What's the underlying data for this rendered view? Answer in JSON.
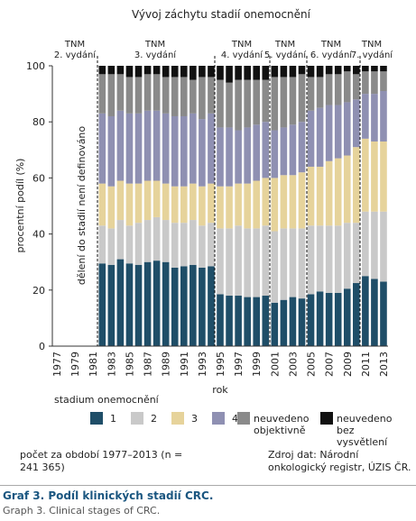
{
  "chart_data": {
    "type": "stacked-bar",
    "title": "Vývoj záchytu stadií onemocnění",
    "y_label": "procentní podíl (%)",
    "x_label": "rok",
    "annotation": "dělení do stadií není definováno",
    "editions": [
      {
        "title": "TNM",
        "edition": "2. vydání"
      },
      {
        "title": "TNM",
        "edition": "3. vydání"
      },
      {
        "title": "TNM",
        "edition": "4. vydání"
      },
      {
        "title": "TNM",
        "edition": "5. vydání"
      },
      {
        "title": "TNM",
        "edition": "6. vydání"
      },
      {
        "title": "TNM",
        "edition": "7. vydání"
      }
    ],
    "categories": [
      "1977",
      null,
      "1979",
      null,
      "1981",
      null,
      "1983",
      null,
      "1985",
      null,
      "1987",
      null,
      "1989",
      null,
      "1991",
      null,
      "1993",
      null,
      "1995",
      null,
      "1997",
      null,
      "1999",
      null,
      "2001",
      null,
      "2003",
      null,
      "2005",
      null,
      "2007",
      null,
      "2009",
      null,
      "2011",
      null,
      "2013"
    ],
    "legend_title": "stadium onemocnění",
    "series": [
      {
        "name": "1",
        "color": "#1f4e68",
        "values": [
          null,
          null,
          null,
          null,
          null,
          29.5,
          29,
          31,
          29.5,
          29,
          30,
          30.5,
          30,
          28,
          28.5,
          29,
          28,
          28.5,
          18.5,
          18,
          18,
          17.5,
          17.5,
          18,
          15.5,
          16.5,
          17.5,
          17,
          18.5,
          19.5,
          19,
          19,
          20.5,
          22.5,
          25,
          24,
          23
        ]
      },
      {
        "name": "2",
        "color": "#c9c9c9",
        "values": [
          null,
          null,
          null,
          null,
          null,
          13.5,
          13,
          14,
          13.5,
          15,
          15,
          15.5,
          15,
          16,
          15.5,
          16,
          15,
          15.5,
          23.5,
          24,
          25,
          24.5,
          24.5,
          25,
          25.5,
          25.5,
          24.5,
          25,
          24.5,
          23.5,
          24,
          24,
          23.5,
          21.5,
          23,
          24,
          25
        ]
      },
      {
        "name": "3",
        "color": "#e6d39b",
        "values": [
          null,
          null,
          null,
          null,
          null,
          15,
          15,
          14,
          15,
          14,
          14,
          13,
          13,
          13,
          13,
          13,
          14,
          14,
          15,
          15,
          15,
          16,
          17,
          17,
          19,
          19,
          19,
          20,
          21,
          21,
          23,
          24,
          24,
          27,
          26,
          25,
          25
        ]
      },
      {
        "name": "4",
        "color": "#8f90b2",
        "values": [
          null,
          null,
          null,
          null,
          null,
          25,
          25,
          25,
          25,
          25,
          25,
          25,
          25,
          25,
          25,
          25,
          24,
          25,
          21,
          21,
          19,
          20,
          20,
          20,
          17,
          17,
          18,
          18,
          20,
          21,
          20,
          19,
          19,
          17,
          16,
          17,
          18
        ]
      },
      {
        "name": "neuvedeno objektivně",
        "color": "#8a8a8a",
        "values": [
          null,
          null,
          null,
          null,
          null,
          14,
          15,
          13,
          13,
          13,
          13,
          13,
          13,
          14,
          14,
          12,
          15,
          13,
          17,
          16,
          18,
          17,
          16,
          15,
          19,
          18,
          17,
          17,
          12,
          11,
          11,
          11,
          11,
          9,
          8,
          8,
          7
        ]
      },
      {
        "name": "neuvedeno bez vysvětlení",
        "color": "#111111",
        "values": [
          null,
          null,
          null,
          null,
          null,
          3,
          3,
          3,
          4,
          4,
          3,
          3,
          4,
          4,
          4,
          5,
          4,
          4,
          5,
          6,
          5,
          5,
          5,
          5,
          4,
          4,
          4,
          3,
          4,
          4,
          3,
          3,
          2,
          3,
          2,
          2,
          2
        ]
      }
    ],
    "ylim": [
      0,
      100
    ],
    "yticks": [
      0,
      20,
      40,
      60,
      80,
      100
    ],
    "count_note": "počet za období 1977–2013 (n = 241 365)",
    "source_note": "Zdroj dat: Národní onkologický registr, ÚZIS ČR.",
    "caption": "Graf 3. Podíl klinických stadií CRC.",
    "caption_en": "Graph 3. Clinical stages of CRC."
  }
}
